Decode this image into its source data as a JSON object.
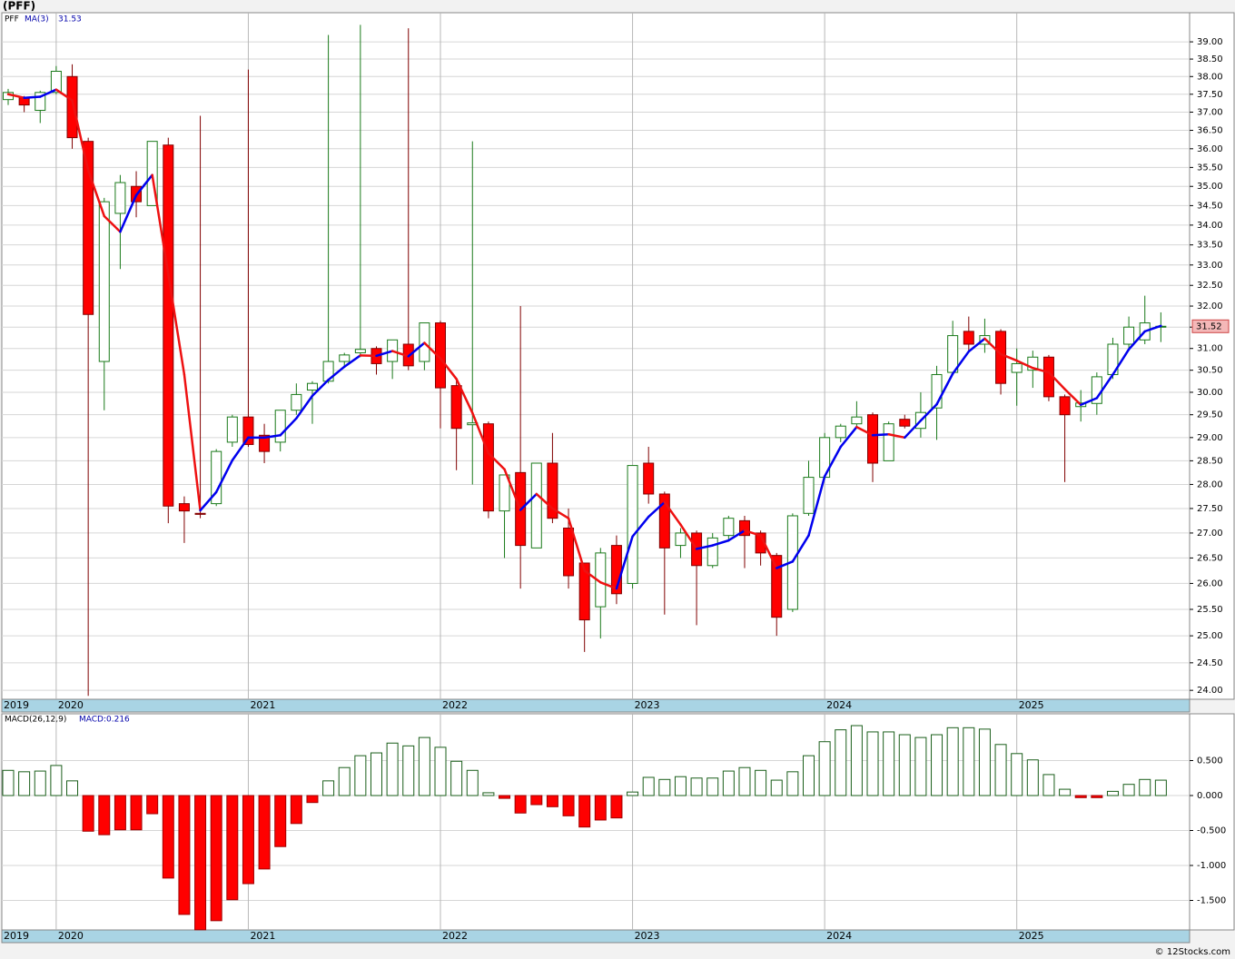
{
  "header": {
    "symbol": "(PFF)"
  },
  "chart_data": [
    {
      "type": "candlestick",
      "log_scale": true,
      "grid": true,
      "symbol": "PFF",
      "ma": {
        "name": "MA(3)",
        "last": 31.53,
        "up_color": "#0000ee",
        "down_color": "#ee1111",
        "values": [
          37.5,
          37.4,
          37.43,
          37.63,
          37.33,
          35.42,
          34.23,
          33.83,
          34.77,
          35.3,
          32.78,
          30.4,
          27.46,
          27.84,
          28.51,
          29.0,
          29.0,
          29.05,
          29.42,
          29.92,
          30.28,
          30.58,
          30.84,
          30.83,
          30.94,
          30.82,
          31.13,
          30.77,
          30.3,
          29.54,
          28.66,
          28.32,
          27.47,
          27.8,
          27.5,
          27.3,
          26.25,
          26.02,
          25.9,
          26.93,
          27.33,
          27.63,
          27.17,
          26.68,
          26.75,
          26.85,
          27.05,
          26.95,
          26.3,
          26.43,
          26.95,
          28.17,
          28.8,
          29.23,
          29.05,
          29.07,
          29.0,
          29.37,
          29.73,
          30.42,
          30.93,
          31.23,
          30.87,
          30.72,
          30.55,
          30.45,
          30.07,
          29.72,
          29.87,
          30.4,
          30.98,
          31.4,
          31.53
        ]
      },
      "period_start_label": "2019",
      "categories": [
        null,
        null,
        null,
        "2020",
        null,
        null,
        null,
        null,
        null,
        null,
        null,
        null,
        null,
        null,
        null,
        "2021",
        null,
        null,
        null,
        null,
        null,
        null,
        null,
        null,
        null,
        null,
        null,
        "2022",
        null,
        null,
        null,
        null,
        null,
        null,
        null,
        null,
        null,
        null,
        null,
        "2023",
        null,
        null,
        null,
        null,
        null,
        null,
        null,
        null,
        null,
        null,
        null,
        "2024",
        null,
        null,
        null,
        null,
        null,
        null,
        null,
        null,
        null,
        null,
        null,
        "2025",
        null,
        null,
        null,
        null,
        null,
        null,
        null,
        null,
        null
      ],
      "open": [
        37.35,
        37.4,
        37.05,
        37.55,
        38.0,
        36.2,
        30.7,
        34.3,
        35.0,
        34.5,
        36.1,
        27.6,
        27.4,
        27.6,
        28.9,
        29.45,
        29.05,
        28.9,
        29.6,
        30.05,
        30.25,
        30.7,
        30.9,
        31.0,
        30.7,
        31.1,
        30.7,
        31.6,
        30.15,
        29.28,
        29.3,
        27.45,
        28.25,
        26.7,
        28.45,
        27.1,
        26.4,
        25.55,
        26.75,
        26.0,
        28.45,
        27.8,
        26.75,
        27.0,
        26.35,
        26.95,
        27.25,
        27.0,
        26.55,
        25.5,
        27.4,
        28.15,
        29.0,
        29.3,
        29.5,
        28.5,
        29.4,
        29.2,
        29.65,
        30.45,
        31.4,
        31.1,
        31.4,
        30.45,
        30.5,
        30.8,
        29.9,
        29.68,
        29.75,
        30.4,
        31.1,
        31.2,
        31.5
      ],
      "high": [
        37.65,
        37.45,
        37.6,
        38.3,
        38.35,
        36.3,
        34.7,
        35.3,
        35.4,
        36.2,
        36.3,
        27.75,
        36.9,
        28.75,
        29.5,
        38.2,
        29.3,
        29.6,
        30.2,
        30.25,
        39.2,
        30.9,
        39.5,
        31.05,
        31.2,
        39.4,
        31.6,
        31.65,
        30.3,
        36.2,
        29.35,
        28.2,
        32.0,
        28.45,
        29.1,
        27.5,
        26.4,
        26.7,
        26.95,
        28.4,
        28.8,
        27.85,
        27.1,
        27.05,
        27.0,
        27.35,
        27.35,
        27.05,
        26.6,
        27.4,
        28.5,
        29.1,
        29.3,
        29.8,
        29.55,
        29.35,
        29.5,
        30.0,
        30.6,
        31.65,
        31.75,
        31.7,
        31.45,
        31.0,
        30.95,
        30.85,
        29.95,
        30.05,
        30.45,
        31.25,
        31.75,
        32.25,
        31.85
      ],
      "low": [
        37.2,
        37.0,
        36.7,
        37.5,
        36.0,
        23.9,
        29.6,
        32.9,
        34.2,
        34.5,
        27.2,
        26.8,
        27.3,
        27.55,
        28.8,
        28.8,
        28.45,
        28.7,
        29.5,
        29.3,
        30.2,
        30.6,
        30.8,
        30.4,
        30.3,
        30.5,
        30.5,
        29.2,
        28.3,
        28.0,
        27.3,
        26.5,
        25.9,
        26.7,
        27.2,
        25.9,
        24.7,
        24.95,
        25.6,
        25.9,
        27.6,
        25.4,
        26.5,
        25.2,
        26.3,
        26.85,
        26.3,
        26.35,
        25.0,
        25.45,
        27.35,
        28.1,
        28.9,
        29.2,
        28.05,
        28.5,
        29.2,
        29.0,
        28.95,
        30.4,
        30.9,
        30.9,
        29.95,
        29.7,
        30.1,
        29.8,
        28.05,
        29.35,
        29.5,
        30.3,
        31.0,
        31.1,
        31.15
      ],
      "close": [
        37.55,
        37.2,
        37.55,
        38.15,
        36.3,
        31.8,
        34.6,
        35.1,
        34.6,
        36.2,
        27.55,
        27.45,
        27.38,
        28.7,
        29.45,
        28.85,
        28.7,
        29.6,
        29.95,
        30.2,
        30.7,
        30.85,
        30.98,
        30.65,
        31.2,
        30.6,
        31.6,
        30.1,
        29.2,
        29.32,
        27.45,
        28.2,
        26.75,
        28.45,
        27.3,
        26.15,
        25.3,
        26.6,
        25.8,
        28.4,
        27.8,
        26.7,
        27.0,
        26.35,
        26.9,
        27.3,
        26.95,
        26.6,
        25.35,
        27.35,
        28.15,
        29.0,
        29.25,
        29.45,
        28.45,
        29.3,
        29.25,
        29.55,
        30.4,
        31.3,
        31.1,
        31.3,
        30.2,
        30.65,
        30.8,
        29.9,
        29.5,
        29.76,
        30.35,
        31.1,
        31.5,
        31.6,
        31.52
      ],
      "last_price": 31.52,
      "up_color": "#1a7a1a",
      "down_color": "#ff0000",
      "down_wick_color": "#800000",
      "ylim": [
        23.84,
        39.86
      ],
      "yticks": [
        {
          "value": 24,
          "label": "24.00"
        },
        {
          "value": 24.5,
          "label": "24.50"
        },
        {
          "value": 25,
          "label": "25.00"
        },
        {
          "value": 25.5,
          "label": "25.50"
        },
        {
          "value": 26,
          "label": "26.00"
        },
        {
          "value": 26.5,
          "label": "26.50"
        },
        {
          "value": 27,
          "label": "27.00"
        },
        {
          "value": 27.5,
          "label": "27.50"
        },
        {
          "value": 28,
          "label": "28.00"
        },
        {
          "value": 28.5,
          "label": "28.50"
        },
        {
          "value": 29,
          "label": "29.00"
        },
        {
          "value": 29.5,
          "label": "29.50"
        },
        {
          "value": 30,
          "label": "30.00"
        },
        {
          "value": 30.5,
          "label": "30.50"
        },
        {
          "value": 31,
          "label": "31.00"
        },
        {
          "value": 31.5,
          "label": "31.50"
        },
        {
          "value": 32,
          "label": "32.00"
        },
        {
          "value": 32.5,
          "label": "32.50"
        },
        {
          "value": 33,
          "label": "33.00"
        },
        {
          "value": 33.5,
          "label": "33.50"
        },
        {
          "value": 34,
          "label": "34.00"
        },
        {
          "value": 34.5,
          "label": "34.50"
        },
        {
          "value": 35,
          "label": "35.00"
        },
        {
          "value": 35.5,
          "label": "35.50"
        },
        {
          "value": 36,
          "label": "36.00"
        },
        {
          "value": 36.5,
          "label": "36.50"
        },
        {
          "value": 37,
          "label": "37.00"
        },
        {
          "value": 37.5,
          "label": "37.50"
        },
        {
          "value": 38,
          "label": "38.00"
        },
        {
          "value": 38.5,
          "label": "38.50"
        },
        {
          "value": 39,
          "label": "39.00"
        }
      ]
    },
    {
      "type": "bar",
      "name": "MACD(26,12,9)",
      "readout": {
        "value": 0.216,
        "label": "MACD:0.216"
      },
      "up_color": "#1a5e1a",
      "down_color": "#ff0000",
      "values": [
        0.36,
        0.34,
        0.35,
        0.43,
        0.21,
        -0.51,
        -0.56,
        -0.49,
        -0.49,
        -0.26,
        -1.18,
        -1.7,
        -1.92,
        -1.79,
        -1.49,
        -1.26,
        -1.05,
        -0.73,
        -0.4,
        -0.1,
        0.21,
        0.4,
        0.57,
        0.61,
        0.75,
        0.71,
        0.83,
        0.69,
        0.49,
        0.36,
        0.04,
        -0.04,
        -0.25,
        -0.13,
        -0.16,
        -0.29,
        -0.45,
        -0.35,
        -0.32,
        0.05,
        0.26,
        0.23,
        0.27,
        0.25,
        0.25,
        0.35,
        0.4,
        0.36,
        0.22,
        0.34,
        0.57,
        0.77,
        0.94,
        1.0,
        0.91,
        0.91,
        0.87,
        0.83,
        0.87,
        0.97,
        0.97,
        0.95,
        0.73,
        0.6,
        0.51,
        0.3,
        0.09,
        -0.03,
        -0.03,
        0.06,
        0.16,
        0.23,
        0.22
      ],
      "ylim": [
        -1.922,
        1.169
      ],
      "yticks": [
        {
          "value": -1.5,
          "label": "-1.500"
        },
        {
          "value": -1,
          "label": "-1.000"
        },
        {
          "value": -0.5,
          "label": "-0.500"
        },
        {
          "value": 0,
          "label": "0.000"
        },
        {
          "value": 0.5,
          "label": "0.500"
        }
      ]
    }
  ],
  "footer": "© 12Stocks.com"
}
